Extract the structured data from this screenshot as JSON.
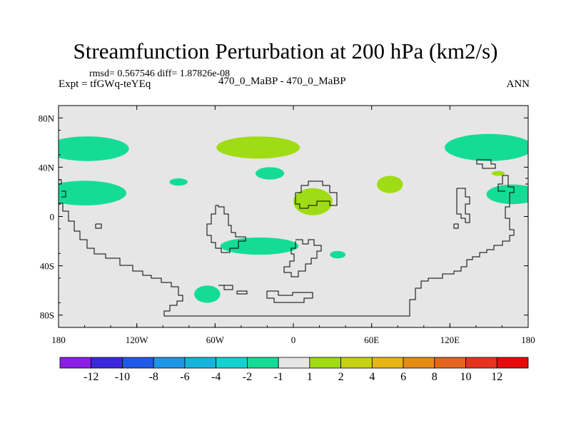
{
  "chart_data": {
    "type": "heatmap",
    "title": "Streamfunction Perturbation at 200 hPa (km2/s)",
    "stats": "rmsd= 0.567546 diff= 1.87826e-08",
    "left_label": "Expt = tfGWq-teYEq",
    "center_label": "470_0_MaBP - 470_0_MaBP",
    "right_label": "ANN",
    "x_ticks": [
      "180",
      "120W",
      "60W",
      "0",
      "60E",
      "120E",
      "180"
    ],
    "x_tick_values": [
      -180,
      -120,
      -60,
      0,
      60,
      120,
      180
    ],
    "y_ticks": [
      "80N",
      "40N",
      "0",
      "40S",
      "80S"
    ],
    "y_tick_values": [
      80,
      40,
      0,
      -40,
      -80
    ],
    "xlim": [
      -180,
      180
    ],
    "ylim": [
      -90,
      90
    ],
    "colorbar_labels": [
      "-12",
      "-10",
      "-8",
      "-6",
      "-4",
      "-2",
      "-1",
      "1",
      "2",
      "4",
      "6",
      "8",
      "10",
      "12"
    ],
    "colorbar_colors": [
      "#8a1ee6",
      "#3c28dc",
      "#1e5ae6",
      "#1e96e6",
      "#14b4dc",
      "#14d2d2",
      "#14dc96",
      "#e6e6e6",
      "#a0dc14",
      "#c8d214",
      "#e6b414",
      "#e68c14",
      "#e6641e",
      "#e6321e",
      "#e60a0a"
    ],
    "background_value_color": "#e6e6e6",
    "anomalies": [
      {
        "lon": -158,
        "lat": 55,
        "rx": 32,
        "ry": 10,
        "level": "-1"
      },
      {
        "lon": -160,
        "lat": 19,
        "rx": 32,
        "ry": 10,
        "level": "-1"
      },
      {
        "lon": -88,
        "lat": 28,
        "rx": 7,
        "ry": 3,
        "level": "-1"
      },
      {
        "lon": -27,
        "lat": 56,
        "rx": 32,
        "ry": 9,
        "level": "1"
      },
      {
        "lon": -18,
        "lat": 35,
        "rx": 11,
        "ry": 5,
        "level": "-1"
      },
      {
        "lon": 15,
        "lat": 12,
        "rx": 15,
        "ry": 11,
        "level": "1"
      },
      {
        "lon": 74,
        "lat": 26,
        "rx": 10,
        "ry": 7,
        "level": "1"
      },
      {
        "lon": 150,
        "lat": 56,
        "rx": 34,
        "ry": 11,
        "level": "-1"
      },
      {
        "lon": 157,
        "lat": 35,
        "rx": 5,
        "ry": 2,
        "level": "1"
      },
      {
        "lon": 168,
        "lat": 18,
        "rx": 20,
        "ry": 8,
        "level": "-1"
      },
      {
        "lon": -26,
        "lat": -24,
        "rx": 30,
        "ry": 7,
        "level": "-1"
      },
      {
        "lon": 34,
        "lat": -31,
        "rx": 6,
        "ry": 3,
        "level": "-1"
      },
      {
        "lon": -66,
        "lat": -63,
        "rx": 10,
        "ry": 7,
        "level": "-1"
      }
    ]
  }
}
